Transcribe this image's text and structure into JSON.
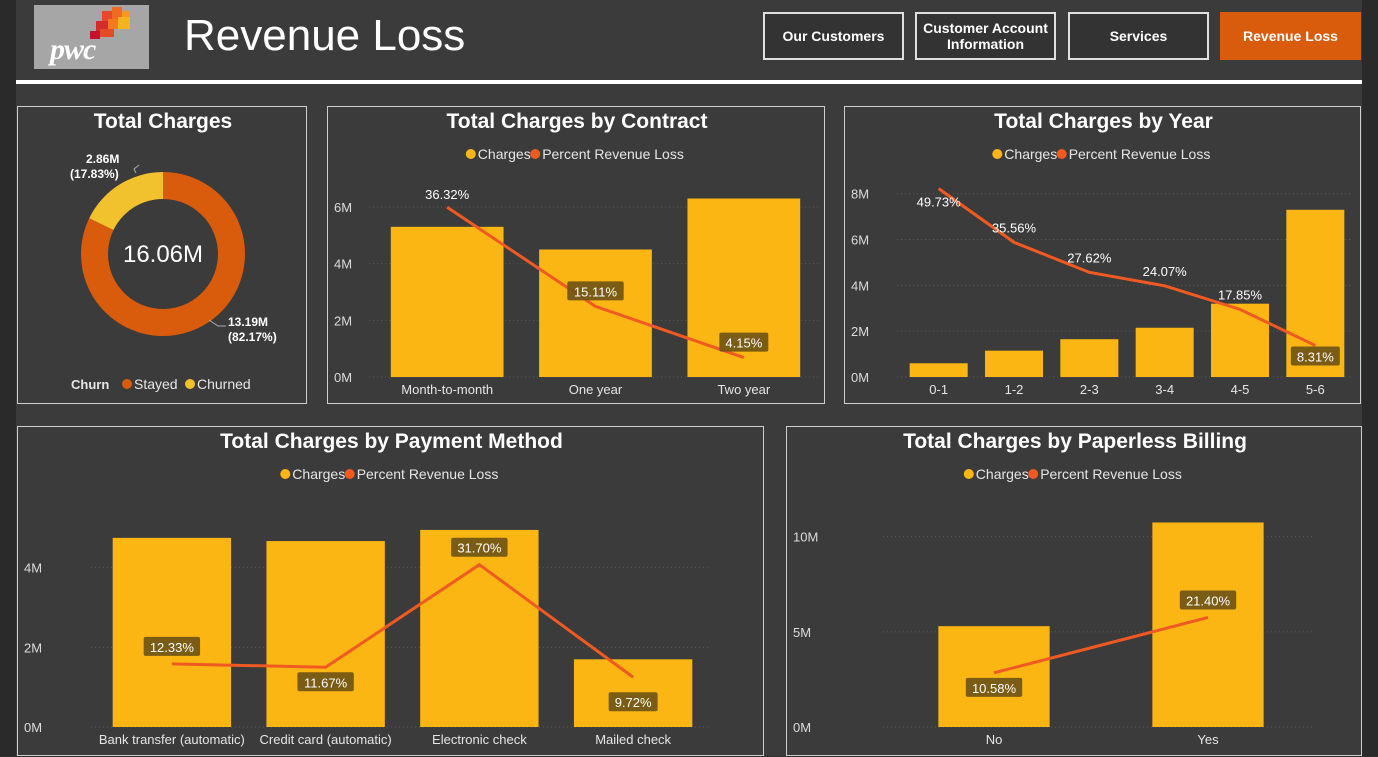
{
  "header": {
    "title": "Revenue Loss",
    "logo_text": "pwc",
    "nav": [
      {
        "label": "Our Customers",
        "active": false
      },
      {
        "label": "Customer Account Information",
        "active": false
      },
      {
        "label": "Services",
        "active": false
      },
      {
        "label": "Revenue Loss",
        "active": true
      }
    ]
  },
  "colors": {
    "charges": "#fcb614",
    "percent_line": "#f05a22",
    "stayed": "#d95b0c",
    "churned": "#f2c12e",
    "active_tab": "#d95b0c"
  },
  "chart_data": [
    {
      "id": "total_charges",
      "type": "pie",
      "title": "Total Charges",
      "center_label": "16.06M",
      "legend_title": "Churn",
      "legend_placement": "bottom",
      "slices": [
        {
          "name": "Stayed",
          "value": 13.19,
          "label": "13.19M",
          "pct_label": "(82.17%)"
        },
        {
          "name": "Churned",
          "value": 2.86,
          "label": "2.86M",
          "pct_label": "(17.83%)"
        }
      ]
    },
    {
      "id": "by_contract",
      "type": "bar",
      "title": "Total Charges by Contract",
      "legend": [
        "Charges",
        "Percent Revenue Loss"
      ],
      "legend_placement": "top",
      "categories": [
        "Month-to-month",
        "One year",
        "Two year"
      ],
      "y_ticks": [
        "0M",
        "2M",
        "4M",
        "6M"
      ],
      "ylim": [
        0,
        6.6
      ],
      "grid": true,
      "series": [
        {
          "name": "Charges",
          "values": [
            5.3,
            4.5,
            6.3
          ]
        },
        {
          "name": "Percent Revenue Loss",
          "kind": "line",
          "values": [
            36.32,
            15.11,
            4.15
          ],
          "labels": [
            "36.32%",
            "15.11%",
            "4.15%"
          ],
          "ylim": [
            0,
            40
          ]
        }
      ]
    },
    {
      "id": "by_year",
      "type": "bar",
      "title": "Total Charges by Year",
      "legend": [
        "Charges",
        "Percent Revenue Loss"
      ],
      "legend_placement": "top",
      "categories": [
        "0-1",
        "1-2",
        "2-3",
        "3-4",
        "4-5",
        "5-6"
      ],
      "y_ticks": [
        "0M",
        "2M",
        "4M",
        "6M",
        "8M"
      ],
      "ylim": [
        0,
        8.6
      ],
      "grid": true,
      "series": [
        {
          "name": "Charges",
          "values": [
            0.6,
            1.15,
            1.65,
            2.15,
            3.2,
            7.3
          ]
        },
        {
          "name": "Percent Revenue Loss",
          "kind": "line",
          "values": [
            49.73,
            35.56,
            27.62,
            24.07,
            17.85,
            8.31
          ],
          "labels": [
            "49.73%",
            "35.56%",
            "27.62%",
            "24.07%",
            "17.85%",
            "8.31%"
          ],
          "ylim": [
            0,
            52
          ]
        }
      ]
    },
    {
      "id": "by_payment",
      "type": "bar",
      "title": "Total Charges by Payment Method",
      "legend": [
        "Charges",
        "Percent Revenue Loss"
      ],
      "legend_placement": "top",
      "categories": [
        "Bank transfer (automatic)",
        "Credit card (automatic)",
        "Electronic check",
        "Mailed check"
      ],
      "y_ticks": [
        "0M",
        "2M",
        "4M"
      ],
      "ylim": [
        0,
        5.4
      ],
      "grid": true,
      "series": [
        {
          "name": "Charges",
          "values": [
            4.75,
            4.67,
            4.95,
            1.7
          ]
        },
        {
          "name": "Percent Revenue Loss",
          "kind": "line",
          "values": [
            12.33,
            11.67,
            31.7,
            9.72
          ],
          "labels": [
            "12.33%",
            "11.67%",
            "31.70%",
            "9.72%"
          ],
          "ylim": [
            0,
            42
          ]
        }
      ]
    },
    {
      "id": "by_paperless",
      "type": "bar",
      "title": "Total Charges by Paperless Billing",
      "legend": [
        "Charges",
        "Percent Revenue Loss"
      ],
      "legend_placement": "top",
      "categories": [
        "No",
        "Yes"
      ],
      "y_ticks": [
        "0M",
        "5M",
        "10M"
      ],
      "ylim": [
        0,
        11.3
      ],
      "grid": true,
      "series": [
        {
          "name": "Charges",
          "values": [
            5.3,
            10.75
          ]
        },
        {
          "name": "Percent Revenue Loss",
          "kind": "line",
          "values": [
            10.58,
            21.4
          ],
          "labels": [
            "10.58%",
            "21.40%"
          ],
          "ylim": [
            0,
            42
          ]
        }
      ]
    }
  ]
}
